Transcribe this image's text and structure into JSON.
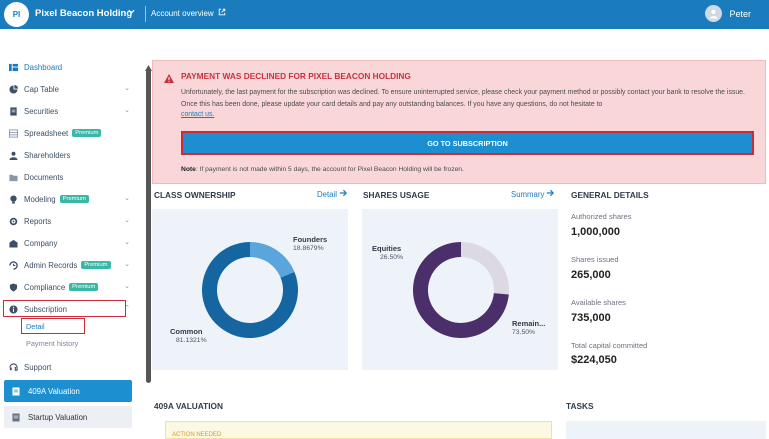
{
  "header": {
    "org_initials": "PI",
    "org_name": "Pixel Beacon Holding",
    "account_overview": "Account overview",
    "user_name": "Peter"
  },
  "sidebar": {
    "items": [
      {
        "label": "Dashboard",
        "icon": "dashboard-icon"
      },
      {
        "label": "Cap Table",
        "icon": "pie-icon"
      },
      {
        "label": "Securities",
        "icon": "document-icon"
      },
      {
        "label": "Spreadsheet",
        "icon": "table-icon",
        "badge": "Premium"
      },
      {
        "label": "Shareholders",
        "icon": "user-icon"
      },
      {
        "label": "Documents",
        "icon": "folder-icon"
      },
      {
        "label": "Modeling",
        "icon": "bulb-icon",
        "badge": "Premium"
      },
      {
        "label": "Reports",
        "icon": "gear-icon"
      },
      {
        "label": "Company",
        "icon": "building-icon"
      },
      {
        "label": "Admin Records",
        "icon": "records-icon",
        "badge": "Premium"
      },
      {
        "label": "Compliance",
        "icon": "shield-icon",
        "badge": "Premium"
      },
      {
        "label": "Subscription",
        "icon": "info-icon"
      }
    ],
    "subscription_sub": {
      "detail": "Detail",
      "payment_history": "Payment history"
    },
    "support": "Support",
    "valuation_409a": "409A Valuation",
    "startup_valuation": "Startup Valuation"
  },
  "alert": {
    "title": "PAYMENT WAS DECLINED FOR PIXEL BEACON HOLDING",
    "body": "Unfortunately, the last payment for the subscription was declined. To ensure uninterrupted service, please check your payment method or possibly contact your bank to resolve the issue. Once this has been done, please update your card details and pay any outstanding balances. If you have any questions, do not hesitate to",
    "link": "contact us.",
    "button": "GO TO SUBSCRIPTION",
    "note_label": "Note",
    "note_text": ": If payment is not made within 5 days, the account for Pixel Beacon Holding will be frozen."
  },
  "class_ownership": {
    "title": "CLASS OWNERSHIP",
    "link": "Detail",
    "segments": [
      {
        "name": "Founders",
        "pct_label": "18.8679%",
        "value": 18.8679,
        "color": "#5aa6dc"
      },
      {
        "name": "Common",
        "pct_label": "81.1321%",
        "value": 81.1321,
        "color": "#1565a0"
      }
    ]
  },
  "shares_usage": {
    "title": "SHARES USAGE",
    "link": "Summary",
    "segments": [
      {
        "name": "Equities",
        "pct_label": "26.50%",
        "value": 26.5,
        "color": "#ddd9e2"
      },
      {
        "name": "Remain...",
        "pct_label": "73.50%",
        "value": 73.5,
        "color": "#4a2f6b"
      }
    ]
  },
  "general_details": {
    "title": "GENERAL DETAILS",
    "items": [
      {
        "label": "Authorized shares",
        "value": "1,000,000"
      },
      {
        "label": "Shares issued",
        "value": "265,000"
      },
      {
        "label": "Available shares",
        "value": "735,000"
      },
      {
        "label": "Total capital committed",
        "value": "$224,050"
      }
    ]
  },
  "valuation_section": {
    "title": "409A VALUATION",
    "action": "ACTION NEEDED"
  },
  "tasks_section": {
    "title": "TASKS"
  }
}
